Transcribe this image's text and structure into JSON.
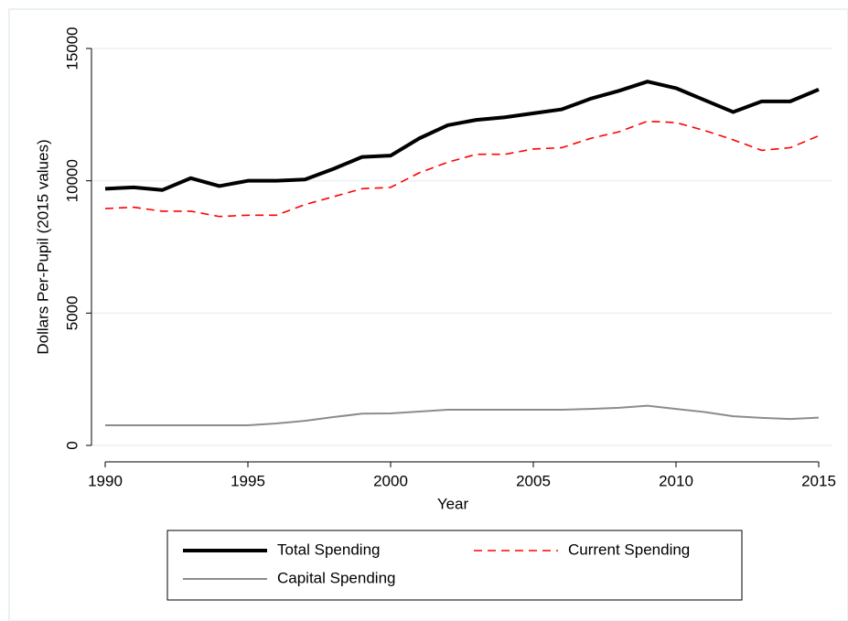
{
  "chart_data": {
    "type": "line",
    "x_label": "Year",
    "y_label": "Dollars Per-Pupil (2015 values)",
    "x": [
      1990,
      1991,
      1992,
      1993,
      1994,
      1995,
      1996,
      1997,
      1998,
      1999,
      2000,
      2001,
      2002,
      2003,
      2004,
      2005,
      2006,
      2007,
      2008,
      2009,
      2010,
      2011,
      2012,
      2013,
      2014,
      2015
    ],
    "series": [
      {
        "name": "Total Spending",
        "color": "#000000",
        "width": 4,
        "dash": false,
        "values": [
          9700,
          9750,
          9650,
          10100,
          9800,
          10000,
          10000,
          10050,
          10450,
          10900,
          10950,
          11600,
          12100,
          12300,
          12400,
          12550,
          12700,
          13100,
          13400,
          13750,
          13500,
          13050,
          12600,
          13000,
          13000,
          13450
        ]
      },
      {
        "name": "Current Spending",
        "color": "#ff0000",
        "width": 1.6,
        "dash": true,
        "values": [
          8950,
          9000,
          8850,
          8850,
          8650,
          8700,
          8700,
          9100,
          9400,
          9700,
          9750,
          10300,
          10700,
          11000,
          11000,
          11200,
          11250,
          11600,
          11850,
          12250,
          12200,
          11900,
          11550,
          11150,
          11250,
          11700
        ]
      },
      {
        "name": "Capital Spending",
        "color": "#8c8c8c",
        "width": 2,
        "dash": false,
        "values": [
          760,
          760,
          760,
          760,
          760,
          760,
          830,
          930,
          1070,
          1200,
          1210,
          1280,
          1350,
          1350,
          1350,
          1350,
          1350,
          1380,
          1420,
          1500,
          1380,
          1260,
          1100,
          1040,
          1000,
          1050
        ]
      }
    ],
    "xlim": [
      1990,
      2015
    ],
    "xticks": [
      1990,
      1995,
      2000,
      2005,
      2010,
      2015
    ],
    "ylim": [
      0,
      15000
    ],
    "yticks": [
      0,
      5000,
      10000,
      15000
    ],
    "grid": true,
    "legend": "bottom"
  }
}
